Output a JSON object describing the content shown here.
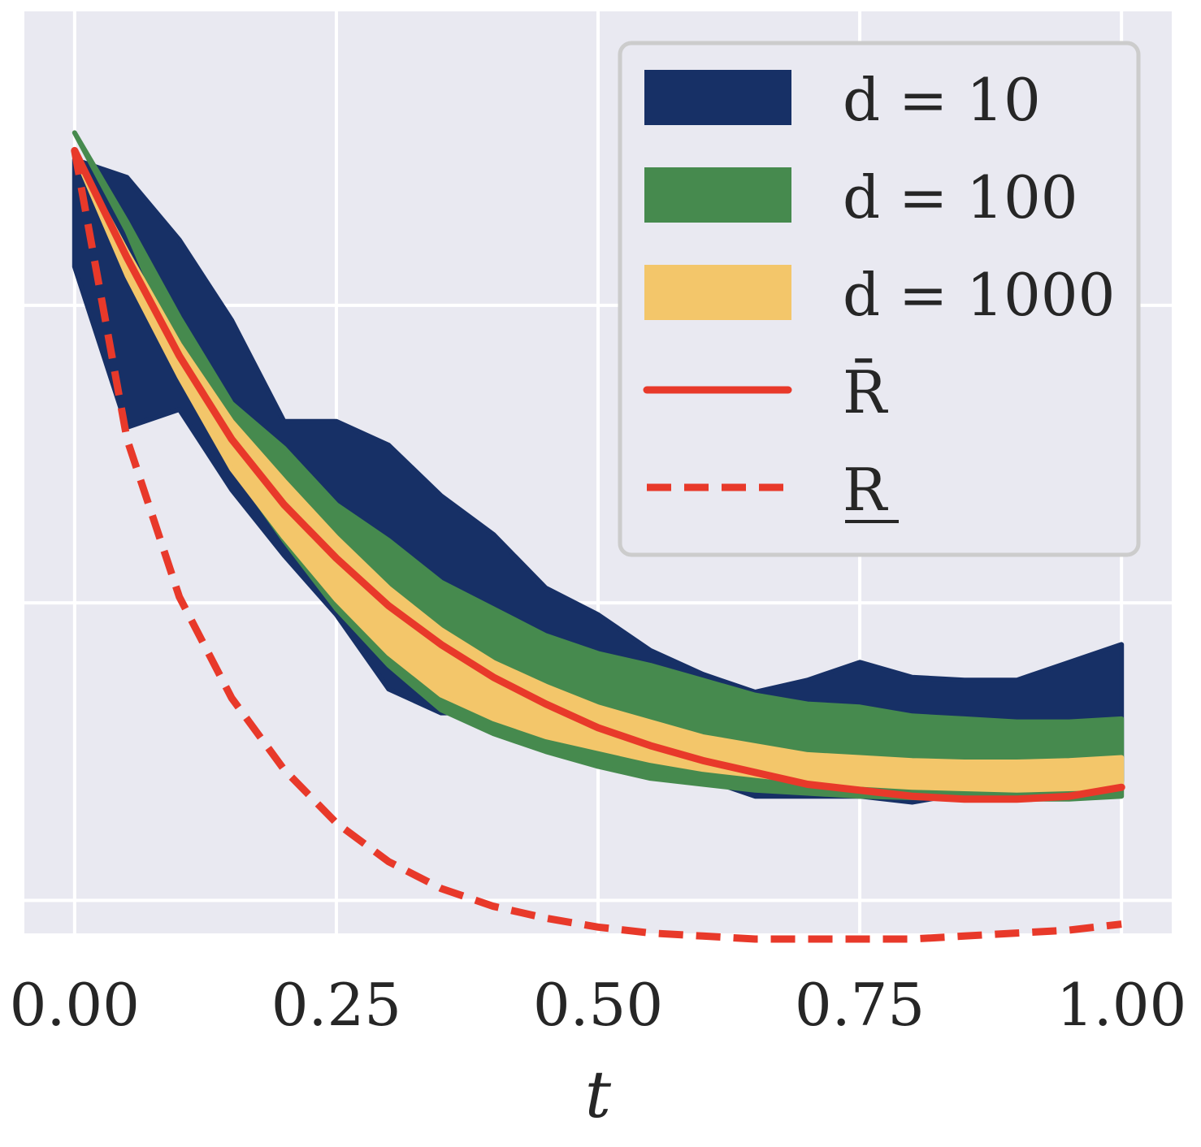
{
  "chart_data": {
    "type": "area",
    "xlabel": "t",
    "ylabel": "",
    "xlim": [
      -0.048,
      1.048
    ],
    "ylim": [
      -0.111,
      2.988
    ],
    "x_ticks": [
      "0.00",
      "0.25",
      "0.50",
      "0.75",
      "1.00"
    ],
    "y_tick_labels_shown": false,
    "grid": true,
    "legend_position": "top-right",
    "x": [
      0.0,
      0.05,
      0.1,
      0.15,
      0.2,
      0.25,
      0.3,
      0.35,
      0.4,
      0.45,
      0.5,
      0.55,
      0.6,
      0.65,
      0.7,
      0.75,
      0.8,
      0.85,
      0.9,
      0.95,
      1.0
    ],
    "series": [
      {
        "name": "d = 10",
        "kind": "band",
        "color": "#173066",
        "lower": [
          2.13,
          1.59,
          1.65,
          1.38,
          1.16,
          0.96,
          0.71,
          0.63,
          0.63,
          0.53,
          0.45,
          0.44,
          0.41,
          0.35,
          0.35,
          0.35,
          0.33,
          0.36,
          0.42,
          0.45,
          0.4
        ],
        "upper": [
          2.49,
          2.43,
          2.22,
          1.95,
          1.61,
          1.61,
          1.53,
          1.36,
          1.23,
          1.05,
          0.96,
          0.84,
          0.76,
          0.7,
          0.74,
          0.8,
          0.75,
          0.74,
          0.74,
          0.8,
          0.86
        ]
      },
      {
        "name": "d = 100",
        "kind": "band",
        "color": "#468a4e",
        "lower": [
          2.58,
          2.25,
          1.84,
          1.46,
          1.21,
          0.98,
          0.79,
          0.64,
          0.56,
          0.5,
          0.45,
          0.41,
          0.39,
          0.37,
          0.36,
          0.35,
          0.345,
          0.34,
          0.34,
          0.34,
          0.35
        ],
        "upper": [
          2.58,
          2.28,
          1.96,
          1.67,
          1.52,
          1.33,
          1.21,
          1.07,
          0.98,
          0.89,
          0.83,
          0.79,
          0.74,
          0.69,
          0.66,
          0.65,
          0.62,
          0.61,
          0.6,
          0.6,
          0.61
        ]
      },
      {
        "name": "d = 1000",
        "kind": "band",
        "color": "#f3c66a",
        "lower": [
          2.51,
          2.1,
          1.76,
          1.45,
          1.22,
          1.01,
          0.83,
          0.69,
          0.61,
          0.55,
          0.51,
          0.47,
          0.44,
          0.42,
          0.4,
          0.39,
          0.38,
          0.375,
          0.37,
          0.375,
          0.38
        ],
        "upper": [
          2.51,
          2.18,
          1.87,
          1.61,
          1.41,
          1.22,
          1.05,
          0.91,
          0.8,
          0.72,
          0.65,
          0.6,
          0.55,
          0.52,
          0.49,
          0.48,
          0.47,
          0.465,
          0.465,
          0.47,
          0.48
        ]
      },
      {
        "name": "R̄",
        "kind": "line",
        "style": "solid",
        "color": "#e8392a",
        "values": [
          2.52,
          2.16,
          1.83,
          1.55,
          1.33,
          1.15,
          0.99,
          0.86,
          0.75,
          0.66,
          0.58,
          0.52,
          0.47,
          0.43,
          0.39,
          0.37,
          0.35,
          0.34,
          0.34,
          0.35,
          0.38
        ]
      },
      {
        "name": "R",
        "kind": "line",
        "style": "dashed",
        "color": "#e8392a",
        "values": [
          2.52,
          1.55,
          1.02,
          0.68,
          0.44,
          0.26,
          0.13,
          0.04,
          -0.02,
          -0.06,
          -0.09,
          -0.11,
          -0.12,
          -0.13,
          -0.13,
          -0.13,
          -0.13,
          -0.12,
          -0.11,
          -0.1,
          -0.08
        ]
      }
    ]
  }
}
